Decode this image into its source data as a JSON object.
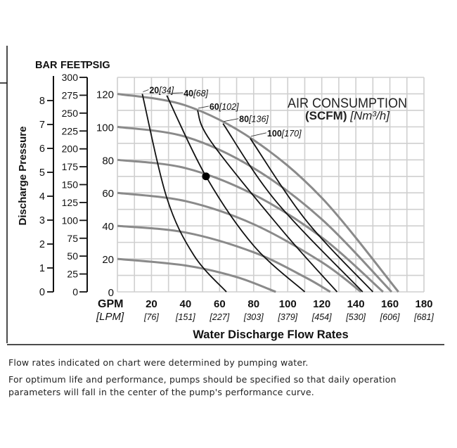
{
  "chart_data": {
    "type": "line",
    "xlabel": "Water Discharge Flow Rates",
    "x_unit_primary": "GPM",
    "x_unit_secondary": "[LPM]",
    "xlim": [
      0,
      180
    ],
    "x_ticks": [
      20,
      40,
      60,
      80,
      100,
      120,
      140,
      160,
      180
    ],
    "x_ticks_secondary": [
      "[76]",
      "[151]",
      "[227]",
      "[303]",
      "[379]",
      "[454]",
      "[530]",
      "[606]",
      "[681]"
    ],
    "ylabel": "Discharge Pressure",
    "ylim": [
      0,
      130
    ],
    "grid": true,
    "axes": {
      "bar": {
        "label": "BAR",
        "ticks": [
          0,
          1,
          2,
          3,
          4,
          5,
          6,
          7,
          8
        ]
      },
      "feet": {
        "label": "FEET",
        "ticks": [
          0,
          25,
          50,
          75,
          100,
          125,
          150,
          175,
          200,
          225,
          250,
          275,
          300
        ]
      },
      "psig": {
        "label": "PSIG",
        "ticks": [
          0,
          20,
          40,
          60,
          80,
          100,
          120
        ]
      }
    },
    "legend_title": "AIR CONSUMPTION",
    "legend_unit_bold": "(SCFM)",
    "legend_unit_italic": "[Nm³/h]",
    "pressure_curves": [
      {
        "points": [
          [
            0,
            120
          ],
          [
            40,
            113
          ],
          [
            80,
            92
          ],
          [
            120,
            57
          ],
          [
            165,
            0
          ]
        ]
      },
      {
        "points": [
          [
            0,
            100
          ],
          [
            40,
            94
          ],
          [
            80,
            75
          ],
          [
            120,
            44
          ],
          [
            161,
            0
          ]
        ]
      },
      {
        "points": [
          [
            0,
            80
          ],
          [
            40,
            75
          ],
          [
            80,
            59
          ],
          [
            120,
            33
          ],
          [
            156,
            0
          ]
        ]
      },
      {
        "points": [
          [
            0,
            60
          ],
          [
            40,
            55
          ],
          [
            80,
            41
          ],
          [
            120,
            18
          ],
          [
            143,
            0
          ]
        ]
      },
      {
        "points": [
          [
            0,
            40
          ],
          [
            40,
            36
          ],
          [
            80,
            24
          ],
          [
            110,
            9
          ],
          [
            125,
            0
          ]
        ]
      },
      {
        "points": [
          [
            0,
            20
          ],
          [
            40,
            16
          ],
          [
            70,
            9
          ],
          [
            93,
            0
          ]
        ]
      }
    ],
    "air_curves": [
      {
        "scfm": "20",
        "nm3h": "[34]",
        "points": [
          [
            14.6,
            120
          ],
          [
            29,
            57
          ],
          [
            45,
            22
          ],
          [
            64,
            0
          ]
        ]
      },
      {
        "scfm": "40",
        "nm3h": "[68]",
        "points": [
          [
            29,
            119
          ],
          [
            52,
            70
          ],
          [
            80,
            28
          ],
          [
            110,
            0
          ]
        ]
      },
      {
        "scfm": "60",
        "nm3h": "[102]",
        "points": [
          [
            47,
            110
          ],
          [
            55,
            91
          ],
          [
            97,
            37
          ],
          [
            129,
            0
          ]
        ]
      },
      {
        "scfm": "80",
        "nm3h": "[136]",
        "points": [
          [
            62,
            102
          ],
          [
            93,
            55
          ],
          [
            144,
            0
          ]
        ]
      },
      {
        "scfm": "100",
        "nm3h": "[170]",
        "points": [
          [
            78,
            93
          ],
          [
            111,
            43
          ],
          [
            150,
            0
          ]
        ]
      }
    ],
    "marker_point": [
      52,
      70
    ],
    "colors": {
      "pressure": "#8a8a8a",
      "air": "#111111",
      "grid": "#cfcfcf"
    }
  },
  "notes": {
    "line1": "Flow rates indicated on chart were determined by pumping water.",
    "line2": "For optimum life and performance, pumps should be specified so that daily operation parameters will fall in the center of the pump's performance curve."
  }
}
